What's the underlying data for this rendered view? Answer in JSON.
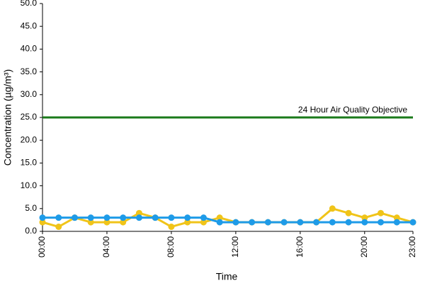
{
  "chart_data": {
    "type": "line",
    "x_label": "Time",
    "y_label": "Concentration (µg/m³)",
    "categories": [
      "00:00",
      null,
      null,
      null,
      "04:00",
      null,
      null,
      null,
      "08:00",
      null,
      null,
      null,
      "12:00",
      null,
      null,
      null,
      "16:00",
      null,
      null,
      null,
      "20:00",
      null,
      null,
      "23:00"
    ],
    "series": [
      {
        "color": "#f0c419",
        "markers": true,
        "values": [
          2,
          1,
          3,
          2,
          2,
          2,
          4,
          3,
          1,
          2,
          2,
          3,
          2,
          2,
          2,
          2,
          2,
          2,
          5,
          4,
          3,
          4,
          3,
          2
        ]
      },
      {
        "color": "#1e9be8",
        "markers": true,
        "values": [
          3,
          3,
          3,
          3,
          3,
          3,
          3,
          3,
          3,
          3,
          3,
          2,
          2,
          2,
          2,
          2,
          2,
          2,
          2,
          2,
          2,
          2,
          2,
          2
        ]
      },
      {
        "name": "24 Hour Air Quality Objective",
        "color": "#1a7a1a",
        "markers": false,
        "values": [
          25,
          25,
          25,
          25,
          25,
          25,
          25,
          25,
          25,
          25,
          25,
          25,
          25,
          25,
          25,
          25,
          25,
          25,
          25,
          25,
          25,
          25,
          25,
          25
        ]
      }
    ],
    "ylim": [
      0,
      50
    ],
    "yticks": [
      {
        "value": 0,
        "label": "0.0"
      },
      {
        "value": 5,
        "label": "5.0"
      },
      {
        "value": 10,
        "label": "10.0"
      },
      {
        "value": 15,
        "label": "15.0"
      },
      {
        "value": 20,
        "label": "20.0"
      },
      {
        "value": 25,
        "label": "25.0"
      },
      {
        "value": 30,
        "label": "30.0"
      },
      {
        "value": 35,
        "label": "35.0"
      },
      {
        "value": 40,
        "label": "40.0"
      },
      {
        "value": 45,
        "label": "45.0"
      },
      {
        "value": 50,
        "label": "50.0"
      }
    ],
    "grid": false
  }
}
